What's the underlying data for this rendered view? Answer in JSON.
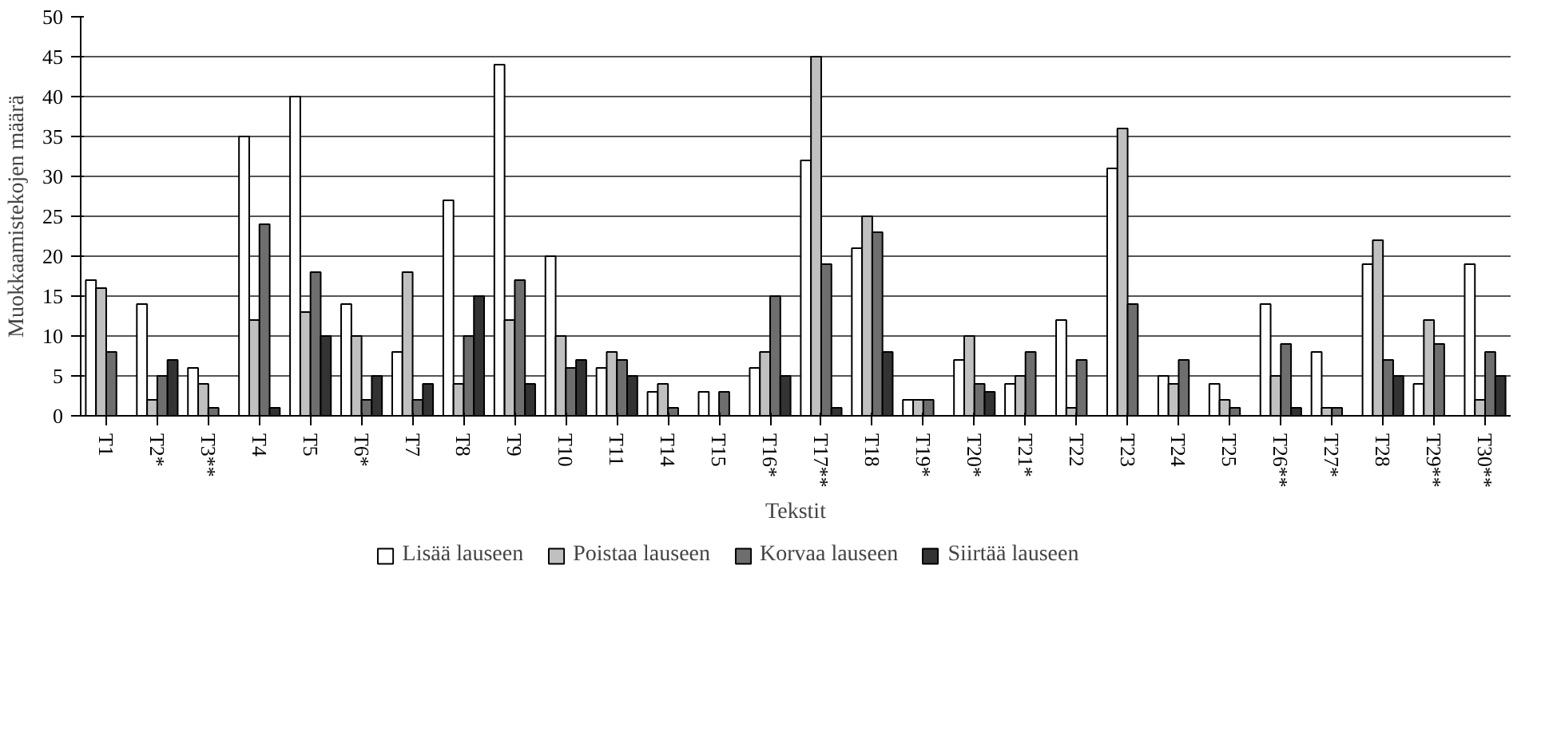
{
  "chart_data": {
    "type": "bar",
    "xlabel": "Tekstit",
    "ylabel": "Muokkaamistekojen määrä",
    "categories": [
      "T1",
      "T2*",
      "T3**",
      "T4",
      "T5",
      "T6*",
      "T7",
      "T8",
      "T9",
      "T10",
      "T11",
      "T14",
      "T15",
      "T16*",
      "T17**",
      "T18",
      "T19*",
      "T20*",
      "T21*",
      "T22",
      "T23",
      "T24",
      "T25",
      "T26**",
      "T27*",
      "T28",
      "T29**",
      "T30**"
    ],
    "series": [
      {
        "name": "Lisää lauseen",
        "color": "#ffffff",
        "values": [
          17,
          14,
          6,
          35,
          40,
          14,
          8,
          27,
          44,
          20,
          6,
          3,
          3,
          6,
          32,
          21,
          2,
          7,
          4,
          12,
          31,
          5,
          4,
          14,
          8,
          19,
          4,
          19
        ]
      },
      {
        "name": "Poistaa lauseen",
        "color": "#c0c0c0",
        "values": [
          16,
          2,
          4,
          12,
          13,
          10,
          18,
          4,
          12,
          10,
          8,
          4,
          0,
          8,
          45,
          25,
          2,
          10,
          5,
          1,
          36,
          4,
          2,
          5,
          1,
          22,
          12,
          2
        ]
      },
      {
        "name": "Korvaa lauseen",
        "color": "#6e6e6e",
        "values": [
          8,
          5,
          1,
          24,
          18,
          2,
          2,
          10,
          17,
          6,
          7,
          1,
          3,
          15,
          19,
          23,
          2,
          4,
          8,
          7,
          14,
          7,
          1,
          9,
          1,
          7,
          9,
          8
        ]
      },
      {
        "name": "Siirtää lauseen",
        "color": "#333333",
        "values": [
          0,
          7,
          0,
          1,
          10,
          5,
          4,
          15,
          4,
          7,
          5,
          0,
          0,
          5,
          1,
          8,
          0,
          3,
          0,
          0,
          0,
          0,
          0,
          1,
          0,
          5,
          0,
          5
        ]
      }
    ],
    "ylim": [
      0,
      50
    ],
    "yticks": [
      0,
      5,
      10,
      15,
      20,
      25,
      30,
      35,
      40,
      45,
      50
    ],
    "grid": "y",
    "legend": "bottom"
  }
}
